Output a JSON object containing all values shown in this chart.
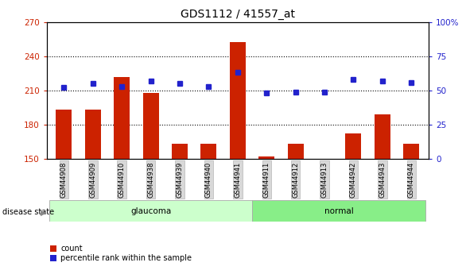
{
  "title": "GDS1112 / 41557_at",
  "samples": [
    "GSM44908",
    "GSM44909",
    "GSM44910",
    "GSM44938",
    "GSM44939",
    "GSM44940",
    "GSM44941",
    "GSM44911",
    "GSM44912",
    "GSM44913",
    "GSM44942",
    "GSM44943",
    "GSM44944"
  ],
  "count_values": [
    193,
    193,
    222,
    208,
    163,
    163,
    252,
    152,
    163,
    150,
    172,
    189,
    163
  ],
  "percentile_values": [
    52,
    55,
    53,
    57,
    55,
    53,
    63,
    48,
    49,
    49,
    58,
    57,
    56
  ],
  "groups": [
    "glaucoma",
    "glaucoma",
    "glaucoma",
    "glaucoma",
    "glaucoma",
    "glaucoma",
    "glaucoma",
    "normal",
    "normal",
    "normal",
    "normal",
    "normal",
    "normal"
  ],
  "ylim_left": [
    150,
    270
  ],
  "ylim_right": [
    0,
    100
  ],
  "yticks_left": [
    150,
    180,
    210,
    240,
    270
  ],
  "yticks_right": [
    0,
    25,
    50,
    75,
    100
  ],
  "bar_color": "#cc2200",
  "dot_color": "#2222cc",
  "glaucoma_color": "#ccffcc",
  "normal_color": "#88ee88",
  "label_bg_color": "#d8d8d8",
  "title_color": "#000000",
  "left_tick_color": "#cc2200",
  "right_tick_color": "#2222cc"
}
